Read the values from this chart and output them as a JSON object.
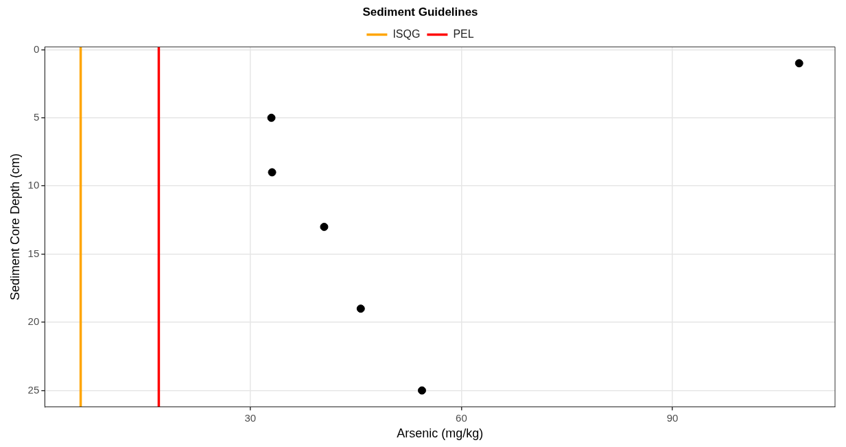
{
  "chart_data": {
    "type": "scatter",
    "xlabel": "Arsenic (mg/kg)",
    "ylabel": "Sediment Core Depth (cm)",
    "legend_title": "Sediment Guidelines",
    "x": [
      108.0,
      33.0,
      33.1,
      40.5,
      45.7,
      54.4
    ],
    "series": [
      {
        "color": "#000000",
        "values": [
          1,
          5,
          9,
          13,
          19,
          25
        ]
      }
    ],
    "marker": "circle",
    "xlim": [
      0.8,
      113.1
    ],
    "xticks": [
      30,
      60,
      90
    ],
    "ylim": [
      26.2,
      -0.2
    ],
    "yticks": [
      0,
      5,
      10,
      15,
      20,
      25
    ],
    "ref_lines": [
      {
        "axis": "x",
        "value": 5.9,
        "label": "ISQG",
        "color": "#ffa500"
      },
      {
        "axis": "x",
        "value": 17.0,
        "label": "PEL",
        "color": "#ff0000"
      }
    ],
    "grid": true,
    "legend": "top"
  }
}
